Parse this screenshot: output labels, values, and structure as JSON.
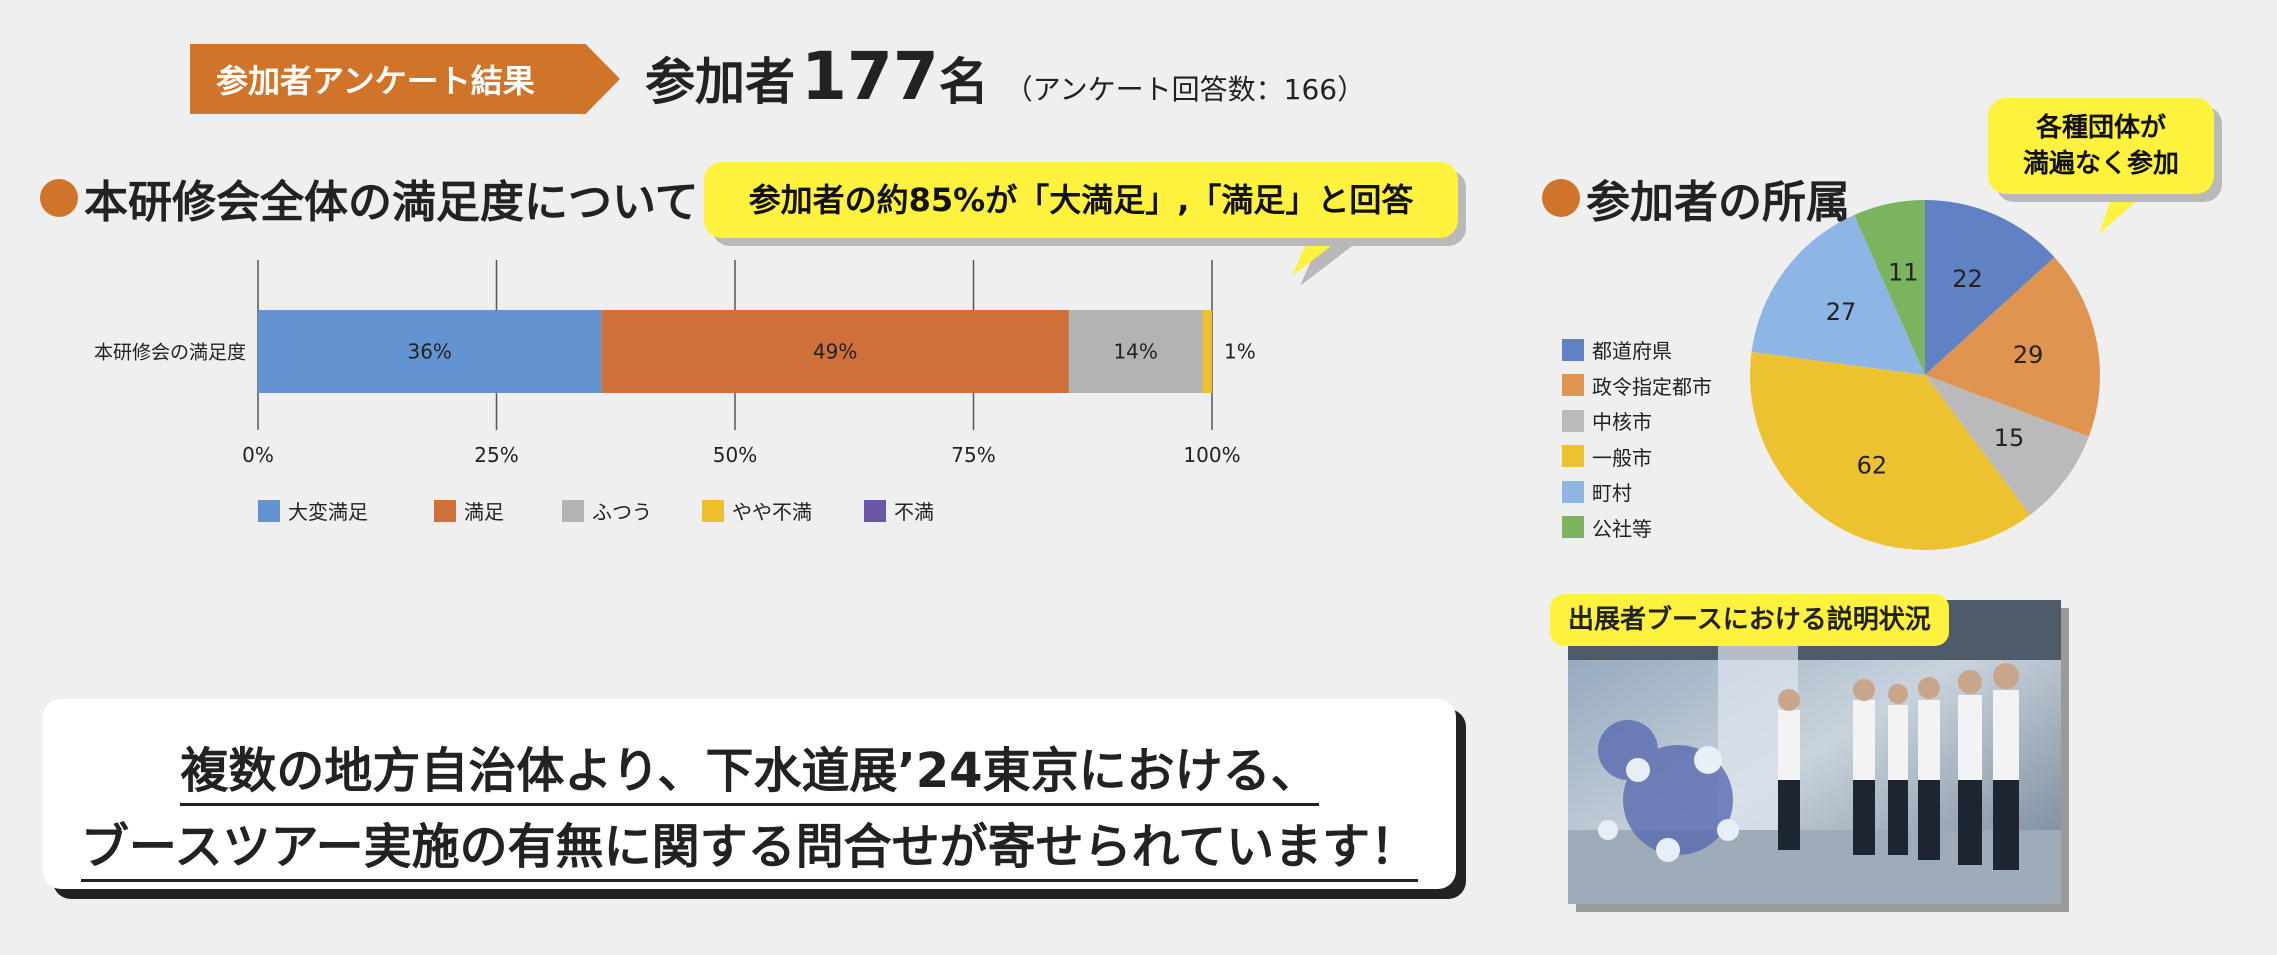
{
  "header": {
    "tag": "参加者アンケート結果",
    "participants_label": "参加者",
    "participants_count": "177",
    "participants_unit": "名",
    "note": "（アンケート回答数：166）"
  },
  "satisfaction": {
    "title": "本研修会全体の満足度について",
    "callout": "参加者の約85%が「大満足」,「満足」と回答"
  },
  "affiliation": {
    "title": "参加者の所属",
    "callout_line1": "各種団体が",
    "callout_line2": "満遍なく参加"
  },
  "photo": {
    "label": "出展者ブースにおける説明状況"
  },
  "message": {
    "line1": "複数の地方自治体より、下水道展’24東京における、",
    "line2": "ブースツアー実施の有無に関する問合せが寄せられています！"
  },
  "chart_data": [
    {
      "type": "bar",
      "orientation": "horizontal-stacked-100",
      "categories": [
        "本研修会の満足度"
      ],
      "series": [
        {
          "name": "大変満足",
          "values": [
            36
          ],
          "label": "36%",
          "color": "#6394d1"
        },
        {
          "name": "満足",
          "values": [
            49
          ],
          "label": "49%",
          "color": "#cf6f39"
        },
        {
          "name": "ふつう",
          "values": [
            14
          ],
          "label": "14%",
          "color": "#b3b3b3"
        },
        {
          "name": "やや不満",
          "values": [
            1
          ],
          "label": "1%",
          "color": "#eec02b"
        },
        {
          "name": "不満",
          "values": [
            0
          ],
          "label": "",
          "color": "#6a55a6"
        }
      ],
      "xlim": [
        0,
        100
      ],
      "xticks": [
        "0%",
        "25%",
        "50%",
        "75%",
        "100%"
      ],
      "grid": true,
      "legend": "bottom"
    },
    {
      "type": "pie",
      "slices": [
        {
          "name": "都道府県",
          "value": 22,
          "color": "#6082c4"
        },
        {
          "name": "政令指定都市",
          "value": 29,
          "color": "#df9550"
        },
        {
          "name": "中核市",
          "value": 15,
          "color": "#bababa"
        },
        {
          "name": "一般市",
          "value": 62,
          "color": "#edc230"
        },
        {
          "name": "町村",
          "value": 27,
          "color": "#8db6e4"
        },
        {
          "name": "公社等",
          "value": 11,
          "color": "#7bb35e"
        }
      ],
      "legend": "left"
    }
  ]
}
